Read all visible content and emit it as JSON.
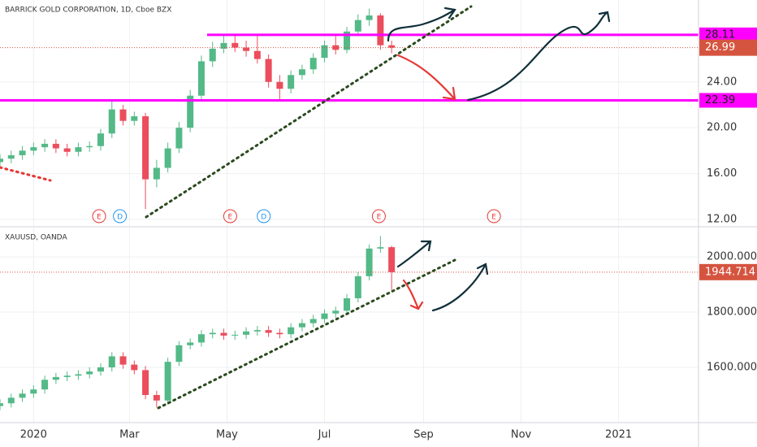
{
  "chart_data": [
    {
      "type": "candlestick",
      "title": "BARRICK GOLD CORPORATION, 1D, Cboe BZX",
      "up_color": "#53b987",
      "down_color": "#eb4d5c",
      "x": [
        -21,
        -14,
        -7,
        0,
        7,
        14,
        21,
        28,
        35,
        42,
        49,
        56,
        63,
        70,
        77,
        84,
        91,
        98,
        105,
        112,
        119,
        126,
        133,
        140,
        147,
        154,
        161,
        168,
        175,
        182,
        189,
        196,
        203,
        210,
        217,
        224
      ],
      "open": [
        17.0,
        17.3,
        17.6,
        18.0,
        18.3,
        18.6,
        18.2,
        17.9,
        18.3,
        18.4,
        19.5,
        21.6,
        20.6,
        21.0,
        15.5,
        16.5,
        18.2,
        20.0,
        22.8,
        25.8,
        26.9,
        27.4,
        27.0,
        26.7,
        26.0,
        24.0,
        23.4,
        24.6,
        25.1,
        26.1,
        27.2,
        26.8,
        28.4,
        29.4,
        29.8,
        27.2
      ],
      "high": [
        17.7,
        18.0,
        18.4,
        18.7,
        19.0,
        19.0,
        18.6,
        18.7,
        18.8,
        19.9,
        22.3,
        22.0,
        21.4,
        21.3,
        17.2,
        18.7,
        20.5,
        23.3,
        26.3,
        27.5,
        28.1,
        28.1,
        27.6,
        28.0,
        26.4,
        24.6,
        25.0,
        25.5,
        26.5,
        27.6,
        28.0,
        28.8,
        29.9,
        30.4,
        30.0,
        27.6
      ],
      "low": [
        16.6,
        16.9,
        17.2,
        17.6,
        17.9,
        17.8,
        17.5,
        17.5,
        17.9,
        18.0,
        19.1,
        20.2,
        20.2,
        12.9,
        14.8,
        16.1,
        17.8,
        19.6,
        22.4,
        25.3,
        26.5,
        26.6,
        26.2,
        25.6,
        23.5,
        22.3,
        23.0,
        24.2,
        24.7,
        25.7,
        26.4,
        26.5,
        28.0,
        28.9,
        26.8,
        26.5
      ],
      "close": [
        17.3,
        17.6,
        18.0,
        18.3,
        18.6,
        18.2,
        17.9,
        18.3,
        18.4,
        19.5,
        21.6,
        20.6,
        21.0,
        15.5,
        16.5,
        18.2,
        20.0,
        22.8,
        25.8,
        26.9,
        27.4,
        27.0,
        26.7,
        26.0,
        24.0,
        23.4,
        24.6,
        25.1,
        26.1,
        27.2,
        26.8,
        28.4,
        29.4,
        29.8,
        27.2,
        26.99
      ],
      "xlim": [
        -21,
        416
      ],
      "ylim": [
        11.43,
        31.15
      ],
      "yticks": [
        {
          "value": 12,
          "label": "12.00"
        },
        {
          "value": 16,
          "label": "16.00"
        },
        {
          "value": 20,
          "label": "20.00"
        },
        {
          "value": 24,
          "label": "24.00"
        }
      ],
      "levels": [
        28.11,
        22.39
      ],
      "level_color": "#ff00ff",
      "last_price": 26.99,
      "last_color": "#d5543f",
      "events": [
        {
          "x": 41,
          "label": "E"
        },
        {
          "x": 54,
          "label": "D"
        },
        {
          "x": 123,
          "label": "E"
        },
        {
          "x": 144,
          "label": "D"
        },
        {
          "x": 216,
          "label": "E"
        },
        {
          "x": 288,
          "label": "E"
        }
      ]
    },
    {
      "type": "candlestick",
      "title": "XAUUSD, OANDA",
      "up_color": "#53b987",
      "down_color": "#eb4d5c",
      "x": [
        -21,
        -14,
        -7,
        0,
        7,
        14,
        21,
        28,
        35,
        42,
        49,
        56,
        63,
        70,
        77,
        84,
        91,
        98,
        105,
        112,
        119,
        126,
        133,
        140,
        147,
        154,
        161,
        168,
        175,
        182,
        189,
        196,
        203,
        210,
        217,
        224
      ],
      "open": [
        1460,
        1470,
        1490,
        1505,
        1520,
        1555,
        1565,
        1570,
        1575,
        1585,
        1600,
        1640,
        1610,
        1590,
        1500,
        1480,
        1620,
        1680,
        1690,
        1720,
        1725,
        1715,
        1718,
        1730,
        1735,
        1725,
        1720,
        1745,
        1760,
        1775,
        1795,
        1805,
        1850,
        1930,
        2030,
        2035
      ],
      "high": [
        1485,
        1505,
        1520,
        1535,
        1570,
        1580,
        1585,
        1590,
        1600,
        1615,
        1655,
        1655,
        1625,
        1605,
        1515,
        1635,
        1695,
        1705,
        1735,
        1740,
        1740,
        1733,
        1745,
        1750,
        1750,
        1740,
        1760,
        1775,
        1790,
        1810,
        1820,
        1865,
        1945,
        2045,
        2075,
        2040
      ],
      "low": [
        1445,
        1455,
        1475,
        1490,
        1505,
        1540,
        1550,
        1555,
        1560,
        1570,
        1585,
        1595,
        1575,
        1485,
        1455,
        1465,
        1605,
        1665,
        1675,
        1705,
        1700,
        1700,
        1703,
        1715,
        1710,
        1705,
        1705,
        1730,
        1745,
        1760,
        1780,
        1790,
        1835,
        1915,
        2015,
        1880
      ],
      "close": [
        1470,
        1490,
        1505,
        1520,
        1555,
        1565,
        1570,
        1575,
        1585,
        1600,
        1640,
        1610,
        1590,
        1500,
        1480,
        1620,
        1680,
        1690,
        1720,
        1725,
        1715,
        1718,
        1730,
        1735,
        1725,
        1720,
        1745,
        1760,
        1775,
        1795,
        1805,
        1850,
        1930,
        2030,
        2035,
        1944.714
      ],
      "xlim": [
        -21,
        416
      ],
      "ylim": [
        1400,
        2106
      ],
      "yticks": [
        {
          "value": 1600,
          "label": "1600.000"
        },
        {
          "value": 1800,
          "label": "1800.000"
        },
        {
          "value": 2000,
          "label": "2000.000"
        }
      ],
      "xticks": [
        {
          "value": 0,
          "label": "2020"
        },
        {
          "value": 60,
          "label": "Mar"
        },
        {
          "value": 121,
          "label": "May"
        },
        {
          "value": 182,
          "label": "Jul"
        },
        {
          "value": 244,
          "label": "Sep"
        },
        {
          "value": 305,
          "label": "Nov"
        },
        {
          "value": 366,
          "label": "2021"
        }
      ],
      "last_price": 1944.714,
      "last_color": "#d5543f"
    }
  ]
}
